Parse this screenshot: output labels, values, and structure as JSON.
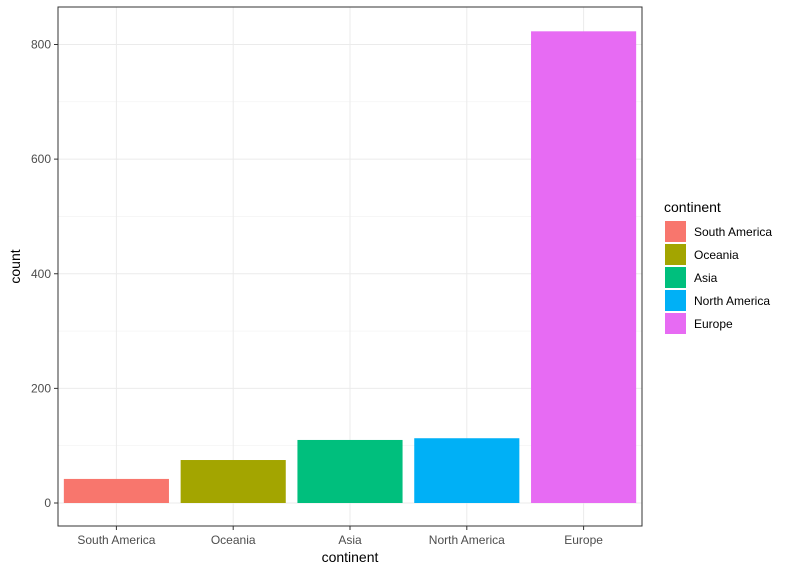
{
  "chart_data": {
    "type": "bar",
    "xlabel": "continent",
    "ylabel": "count",
    "categories": [
      "South America",
      "Oceania",
      "Asia",
      "North America",
      "Europe"
    ],
    "values": [
      42,
      75,
      110,
      113,
      823
    ],
    "colors": [
      "#F8766D",
      "#A3A500",
      "#00BF7D",
      "#00B0F6",
      "#E76BF3"
    ],
    "ylim": [
      0,
      865
    ],
    "yticks": [
      0,
      200,
      400,
      600,
      800
    ],
    "grid": true,
    "legend": {
      "title": "continent",
      "position": "right",
      "items": [
        "South America",
        "Oceania",
        "Asia",
        "North America",
        "Europe"
      ]
    }
  }
}
